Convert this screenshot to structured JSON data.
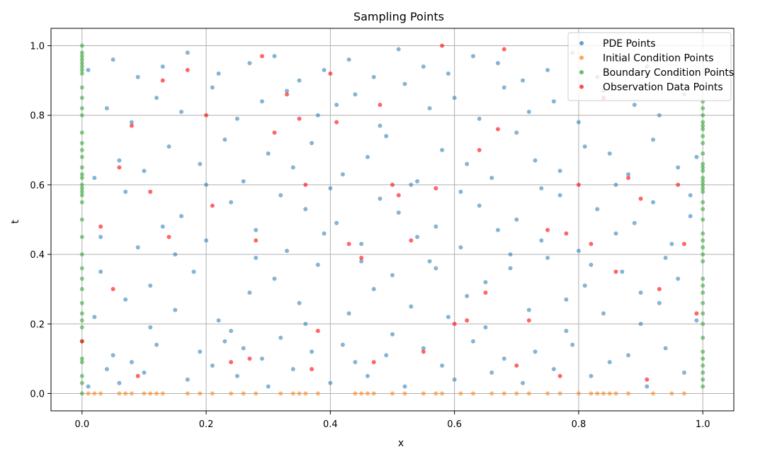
{
  "chart_data": {
    "type": "scatter",
    "title": "Sampling Points",
    "xlabel": "x",
    "ylabel": "t",
    "xlim": [
      -0.05,
      1.05
    ],
    "ylim": [
      -0.05,
      1.05
    ],
    "xticks": [
      0.0,
      0.2,
      0.4,
      0.6,
      0.8,
      1.0
    ],
    "yticks": [
      0.0,
      0.2,
      0.4,
      0.6,
      0.8,
      1.0
    ],
    "xtick_labels": [
      "0.0",
      "0.2",
      "0.4",
      "0.6",
      "0.8",
      "1.0"
    ],
    "ytick_labels": [
      "0.0",
      "0.2",
      "0.4",
      "0.6",
      "0.8",
      "1.0"
    ],
    "grid": true,
    "legend_position": "top-right",
    "series": [
      {
        "name": "PDE Points",
        "color": "#1f77b4",
        "x": [
          0.01,
          0.04,
          0.05,
          0.06,
          0.08,
          0.1,
          0.12,
          0.17,
          0.19,
          0.21,
          0.23,
          0.25,
          0.26,
          0.29,
          0.3,
          0.32,
          0.34,
          0.37,
          0.4,
          0.42,
          0.44,
          0.46,
          0.49,
          0.52,
          0.55,
          0.58,
          0.6,
          0.63,
          0.66,
          0.68,
          0.71,
          0.73,
          0.76,
          0.79,
          0.82,
          0.85,
          0.88,
          0.91,
          0.94,
          0.97,
          0.02,
          0.07,
          0.11,
          0.15,
          0.18,
          0.22,
          0.27,
          0.31,
          0.35,
          0.38,
          0.43,
          0.47,
          0.5,
          0.53,
          0.56,
          0.59,
          0.62,
          0.65,
          0.69,
          0.72,
          0.75,
          0.78,
          0.81,
          0.84,
          0.87,
          0.9,
          0.93,
          0.96,
          0.99,
          0.03,
          0.09,
          0.13,
          0.16,
          0.2,
          0.24,
          0.28,
          0.33,
          0.36,
          0.39,
          0.41,
          0.45,
          0.48,
          0.51,
          0.54,
          0.57,
          0.61,
          0.64,
          0.67,
          0.7,
          0.74,
          0.77,
          0.8,
          0.83,
          0.86,
          0.89,
          0.92,
          0.95,
          0.98,
          0.02,
          0.06,
          0.1,
          0.14,
          0.19,
          0.23,
          0.26,
          0.3,
          0.34,
          0.37,
          0.42,
          0.46,
          0.49,
          0.53,
          0.58,
          0.62,
          0.66,
          0.7,
          0.73,
          0.77,
          0.81,
          0.85,
          0.88,
          0.92,
          0.96,
          0.99,
          0.04,
          0.08,
          0.12,
          0.16,
          0.21,
          0.25,
          0.29,
          0.33,
          0.38,
          0.41,
          0.44,
          0.48,
          0.52,
          0.56,
          0.6,
          0.64,
          0.68,
          0.72,
          0.76,
          0.8,
          0.84,
          0.89,
          0.93,
          0.97,
          0.01,
          0.05,
          0.09,
          0.13,
          0.17,
          0.22,
          0.27,
          0.31,
          0.35,
          0.39,
          0.43,
          0.47,
          0.51,
          0.55,
          0.59,
          0.63,
          0.67,
          0.71,
          0.75,
          0.79,
          0.83,
          0.87,
          0.91,
          0.95,
          0.03,
          0.07,
          0.11,
          0.15,
          0.2,
          0.24,
          0.28,
          0.32,
          0.36,
          0.4,
          0.45,
          0.5,
          0.54,
          0.57,
          0.61,
          0.65,
          0.69,
          0.74,
          0.78,
          0.82,
          0.86,
          0.9,
          0.94,
          0.98
        ],
        "y": [
          0.02,
          0.07,
          0.11,
          0.03,
          0.09,
          0.06,
          0.14,
          0.04,
          0.12,
          0.08,
          0.15,
          0.05,
          0.13,
          0.1,
          0.02,
          0.16,
          0.07,
          0.12,
          0.03,
          0.14,
          0.09,
          0.05,
          0.11,
          0.02,
          0.13,
          0.08,
          0.04,
          0.15,
          0.06,
          0.1,
          0.03,
          0.12,
          0.07,
          0.14,
          0.05,
          0.09,
          0.11,
          0.02,
          0.13,
          0.06,
          0.22,
          0.27,
          0.31,
          0.24,
          0.35,
          0.21,
          0.29,
          0.33,
          0.26,
          0.37,
          0.23,
          0.3,
          0.34,
          0.25,
          0.38,
          0.22,
          0.28,
          0.32,
          0.36,
          0.24,
          0.39,
          0.27,
          0.31,
          0.23,
          0.35,
          0.29,
          0.26,
          0.33,
          0.21,
          0.45,
          0.42,
          0.48,
          0.51,
          0.44,
          0.55,
          0.47,
          0.41,
          0.53,
          0.46,
          0.49,
          0.43,
          0.56,
          0.52,
          0.45,
          0.48,
          0.42,
          0.54,
          0.47,
          0.5,
          0.44,
          0.57,
          0.41,
          0.53,
          0.46,
          0.49,
          0.55,
          0.43,
          0.51,
          0.62,
          0.67,
          0.64,
          0.71,
          0.66,
          0.73,
          0.61,
          0.69,
          0.65,
          0.72,
          0.63,
          0.68,
          0.74,
          0.6,
          0.7,
          0.66,
          0.62,
          0.75,
          0.67,
          0.64,
          0.71,
          0.69,
          0.63,
          0.73,
          0.65,
          0.68,
          0.82,
          0.78,
          0.85,
          0.81,
          0.88,
          0.79,
          0.84,
          0.87,
          0.8,
          0.83,
          0.86,
          0.77,
          0.89,
          0.82,
          0.85,
          0.79,
          0.88,
          0.81,
          0.84,
          0.78,
          0.87,
          0.83,
          0.8,
          0.86,
          0.93,
          0.96,
          0.91,
          0.94,
          0.98,
          0.92,
          0.95,
          0.97,
          0.9,
          0.93,
          0.96,
          0.91,
          0.99,
          0.94,
          0.92,
          0.97,
          0.95,
          0.9,
          0.93,
          0.98,
          0.91,
          0.96,
          0.94,
          0.92,
          0.35,
          0.58,
          0.19,
          0.4,
          0.6,
          0.18,
          0.39,
          0.57,
          0.2,
          0.59,
          0.38,
          0.17,
          0.61,
          0.36,
          0.58,
          0.19,
          0.4,
          0.59,
          0.18,
          0.37,
          0.6,
          0.2,
          0.39,
          0.57
        ]
      },
      {
        "name": "Initial Condition Points",
        "color": "#ff7f0e",
        "x": [
          0.01,
          0.02,
          0.03,
          0.06,
          0.07,
          0.08,
          0.1,
          0.11,
          0.12,
          0.13,
          0.17,
          0.19,
          0.21,
          0.24,
          0.26,
          0.28,
          0.32,
          0.34,
          0.35,
          0.36,
          0.38,
          0.44,
          0.45,
          0.46,
          0.47,
          0.5,
          0.52,
          0.55,
          0.57,
          0.58,
          0.61,
          0.63,
          0.66,
          0.68,
          0.7,
          0.72,
          0.75,
          0.77,
          0.8,
          0.82,
          0.83,
          0.84,
          0.85,
          0.86,
          0.88,
          0.92,
          0.95,
          0.97
        ],
        "y": [
          0,
          0,
          0,
          0,
          0,
          0,
          0,
          0,
          0,
          0,
          0,
          0,
          0,
          0,
          0,
          0,
          0,
          0,
          0,
          0,
          0,
          0,
          0,
          0,
          0,
          0,
          0,
          0,
          0,
          0,
          0,
          0,
          0,
          0,
          0,
          0,
          0,
          0,
          0,
          0,
          0,
          0,
          0,
          0,
          0,
          0,
          0,
          0
        ]
      },
      {
        "name": "Boundary Condition Points",
        "color": "#2ca02c",
        "x": [
          0,
          0,
          0,
          0,
          0,
          0,
          0,
          0,
          0,
          0,
          0,
          0,
          0,
          0,
          0,
          0,
          0,
          0,
          0,
          0,
          0,
          0,
          0,
          0,
          0,
          0,
          0,
          0,
          0,
          0,
          0,
          0,
          0,
          0,
          0,
          0,
          0,
          0,
          0,
          0,
          1,
          1,
          1,
          1,
          1,
          1,
          1,
          1,
          1,
          1,
          1,
          1,
          1,
          1,
          1,
          1,
          1,
          1,
          1,
          1,
          1,
          1,
          1,
          1,
          1,
          1,
          1,
          1,
          1,
          1,
          1,
          1,
          1,
          1,
          1,
          1,
          1,
          1
        ],
        "y": [
          0.0,
          0.03,
          0.05,
          0.09,
          0.1,
          0.15,
          0.19,
          0.21,
          0.23,
          0.26,
          0.3,
          0.33,
          0.36,
          0.4,
          0.45,
          0.5,
          0.55,
          0.57,
          0.58,
          0.59,
          0.6,
          0.62,
          0.63,
          0.65,
          0.68,
          0.7,
          0.72,
          0.75,
          0.8,
          0.82,
          0.85,
          0.88,
          0.92,
          0.93,
          0.94,
          0.95,
          0.96,
          0.97,
          0.98,
          1.0,
          0.02,
          0.04,
          0.06,
          0.08,
          0.1,
          0.12,
          0.16,
          0.2,
          0.23,
          0.26,
          0.29,
          0.31,
          0.33,
          0.38,
          0.4,
          0.42,
          0.44,
          0.46,
          0.5,
          0.53,
          0.55,
          0.58,
          0.59,
          0.6,
          0.61,
          0.62,
          0.64,
          0.65,
          0.66,
          0.69,
          0.72,
          0.74,
          0.76,
          0.77,
          0.78,
          0.8,
          0.82,
          0.84
        ]
      },
      {
        "name": "Observation Data Points",
        "color": "#ff0000",
        "x": [
          0.0,
          0.03,
          0.05,
          0.06,
          0.08,
          0.09,
          0.11,
          0.13,
          0.14,
          0.17,
          0.2,
          0.21,
          0.24,
          0.27,
          0.28,
          0.29,
          0.31,
          0.33,
          0.35,
          0.36,
          0.37,
          0.38,
          0.4,
          0.41,
          0.43,
          0.45,
          0.47,
          0.48,
          0.5,
          0.51,
          0.53,
          0.55,
          0.57,
          0.58,
          0.6,
          0.62,
          0.64,
          0.65,
          0.67,
          0.68,
          0.7,
          0.72,
          0.75,
          0.77,
          0.78,
          0.8,
          0.82,
          0.84,
          0.86,
          0.88,
          0.9,
          0.91,
          0.93,
          0.96,
          0.97,
          0.99
        ],
        "y": [
          0.15,
          0.48,
          0.3,
          0.65,
          0.77,
          0.05,
          0.58,
          0.9,
          0.45,
          0.93,
          0.8,
          0.54,
          0.09,
          0.1,
          0.44,
          0.97,
          0.75,
          0.86,
          0.79,
          0.6,
          0.07,
          0.18,
          0.92,
          0.78,
          0.43,
          0.39,
          0.09,
          0.83,
          0.6,
          0.57,
          0.44,
          0.12,
          0.59,
          1.0,
          0.2,
          0.21,
          0.7,
          0.29,
          0.76,
          0.99,
          0.08,
          0.21,
          0.47,
          0.05,
          0.46,
          0.6,
          0.43,
          0.85,
          0.35,
          0.62,
          0.56,
          0.04,
          0.3,
          0.6,
          0.43,
          0.23
        ]
      }
    ]
  }
}
